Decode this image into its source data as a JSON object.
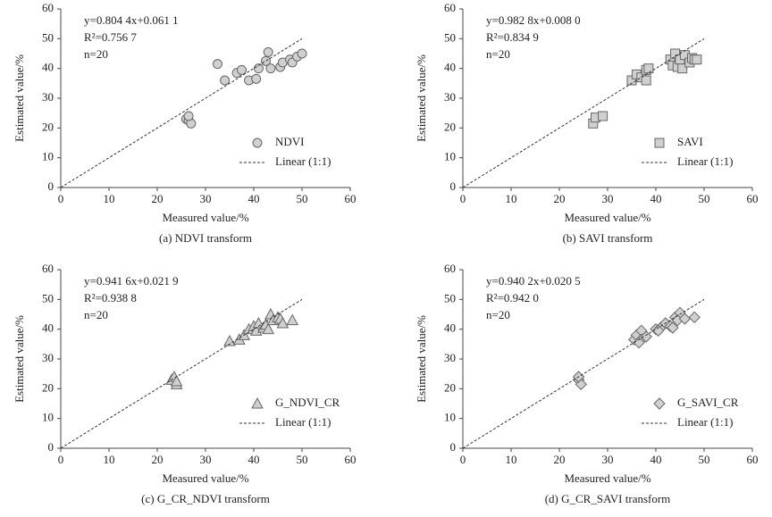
{
  "chart_data": [
    {
      "type": "scatter",
      "marker": "circle",
      "legend": "lower right",
      "color": "#d0d0d0",
      "x_label": "Measured value/%",
      "y_label": "Estimated value/%",
      "caption": "(a) NDVI transform",
      "annotations": [
        "y=0.804 4x+0.061 1",
        "R²=0.756 7",
        "n=20"
      ],
      "xlim": [
        0,
        60
      ],
      "ylim": [
        0,
        60
      ],
      "xticks": [
        0,
        10,
        20,
        30,
        40,
        50,
        60
      ],
      "yticks": [
        0,
        10,
        20,
        30,
        40,
        50,
        60
      ],
      "series": [
        {
          "name": "NDVI",
          "x": [
            26,
            26.5,
            27,
            26.5,
            32.5,
            34,
            36.5,
            37.5,
            39,
            40.5,
            41,
            42.5,
            43,
            43.5,
            45.5,
            46,
            47.5,
            48,
            49,
            50
          ],
          "values": [
            23,
            22.5,
            21.5,
            24,
            41.5,
            36,
            38.5,
            39.5,
            36,
            36.5,
            40,
            42.5,
            45.5,
            40,
            40.5,
            42,
            43,
            42,
            44,
            45
          ]
        },
        {
          "name": "Linear (1:1)",
          "style": "dashed",
          "x": [
            0,
            50
          ],
          "values": [
            0,
            50
          ]
        }
      ]
    },
    {
      "type": "scatter",
      "marker": "square",
      "legend": "lower right",
      "color": "#d0d0d0",
      "x_label": "Measured value/%",
      "y_label": "Estimated value/%",
      "caption": "(b) SAVI transform",
      "annotations": [
        "y=0.982 8x+0.008 0",
        "R²=0.834 9",
        "n=20"
      ],
      "xlim": [
        0,
        60
      ],
      "ylim": [
        0,
        60
      ],
      "xticks": [
        0,
        10,
        20,
        30,
        40,
        50,
        60
      ],
      "yticks": [
        0,
        10,
        20,
        30,
        40,
        50,
        60
      ],
      "series": [
        {
          "name": "SAVI",
          "x": [
            27,
            27.5,
            29,
            35,
            36,
            37,
            38,
            38.5,
            38,
            43,
            43.5,
            44,
            44.5,
            45,
            45.5,
            46,
            47,
            47.5,
            48,
            48.5
          ],
          "values": [
            21.5,
            23.5,
            24,
            36,
            38,
            37,
            39.5,
            40,
            36,
            43,
            41,
            45,
            40.5,
            43,
            40,
            44.5,
            42,
            43.5,
            43,
            43
          ]
        },
        {
          "name": "Linear (1:1)",
          "style": "dashed",
          "x": [
            0,
            50
          ],
          "values": [
            0,
            50
          ]
        }
      ]
    },
    {
      "type": "scatter",
      "marker": "triangle",
      "legend": "lower right",
      "color": "#d0d0d0",
      "x_label": "Measured value/%",
      "y_label": "Estimated value/%",
      "caption": "(c) G_CR_NDVI transform",
      "annotations": [
        "y=0.941 6x+0.021 9",
        "R²=0.938 8",
        "n=20"
      ],
      "xlim": [
        0,
        60
      ],
      "ylim": [
        0,
        60
      ],
      "xticks": [
        0,
        10,
        20,
        30,
        40,
        50,
        60
      ],
      "yticks": [
        0,
        10,
        20,
        30,
        40,
        50,
        60
      ],
      "series": [
        {
          "name": "G_NDVI_CR",
          "x": [
            23,
            23.5,
            24,
            24,
            35,
            37,
            38,
            39,
            40,
            40.5,
            41,
            42,
            42.5,
            43,
            43.5,
            44,
            45,
            45.5,
            46,
            48
          ],
          "values": [
            23,
            24,
            21.5,
            22.5,
            36,
            36.5,
            38,
            40,
            41,
            39.5,
            42,
            40.5,
            41.5,
            40,
            45,
            43,
            44,
            43.5,
            42,
            43
          ]
        },
        {
          "name": "Linear (1:1)",
          "style": "dashed",
          "x": [
            0,
            50
          ],
          "values": [
            0,
            50
          ]
        }
      ]
    },
    {
      "type": "scatter",
      "marker": "diamond",
      "legend": "lower right",
      "color": "#d0d0d0",
      "x_label": "Measured value/%",
      "y_label": "Estimated value/%",
      "caption": "(d) G_CR_SAVI transform",
      "annotations": [
        "y=0.940 2x+0.020 5",
        "R²=0.942 0",
        "n=20"
      ],
      "xlim": [
        0,
        60
      ],
      "ylim": [
        0,
        60
      ],
      "xticks": [
        0,
        10,
        20,
        30,
        40,
        50,
        60
      ],
      "yticks": [
        0,
        10,
        20,
        30,
        40,
        50,
        60
      ],
      "series": [
        {
          "name": "G_SAVI_CR",
          "x": [
            24,
            24.5,
            24,
            35.5,
            36,
            37,
            37,
            38,
            40,
            41,
            42,
            43,
            43.5,
            44,
            45,
            44.5,
            46,
            48,
            36.5,
            40.5
          ],
          "values": [
            23,
            21.5,
            24,
            36.5,
            38,
            39.5,
            36.5,
            37.5,
            40,
            40.5,
            42,
            41,
            40.5,
            44,
            45.5,
            43,
            43.5,
            44,
            35.5,
            39.5
          ]
        },
        {
          "name": "Linear (1:1)",
          "style": "dashed",
          "x": [
            0,
            50
          ],
          "values": [
            0,
            50
          ]
        }
      ]
    }
  ]
}
